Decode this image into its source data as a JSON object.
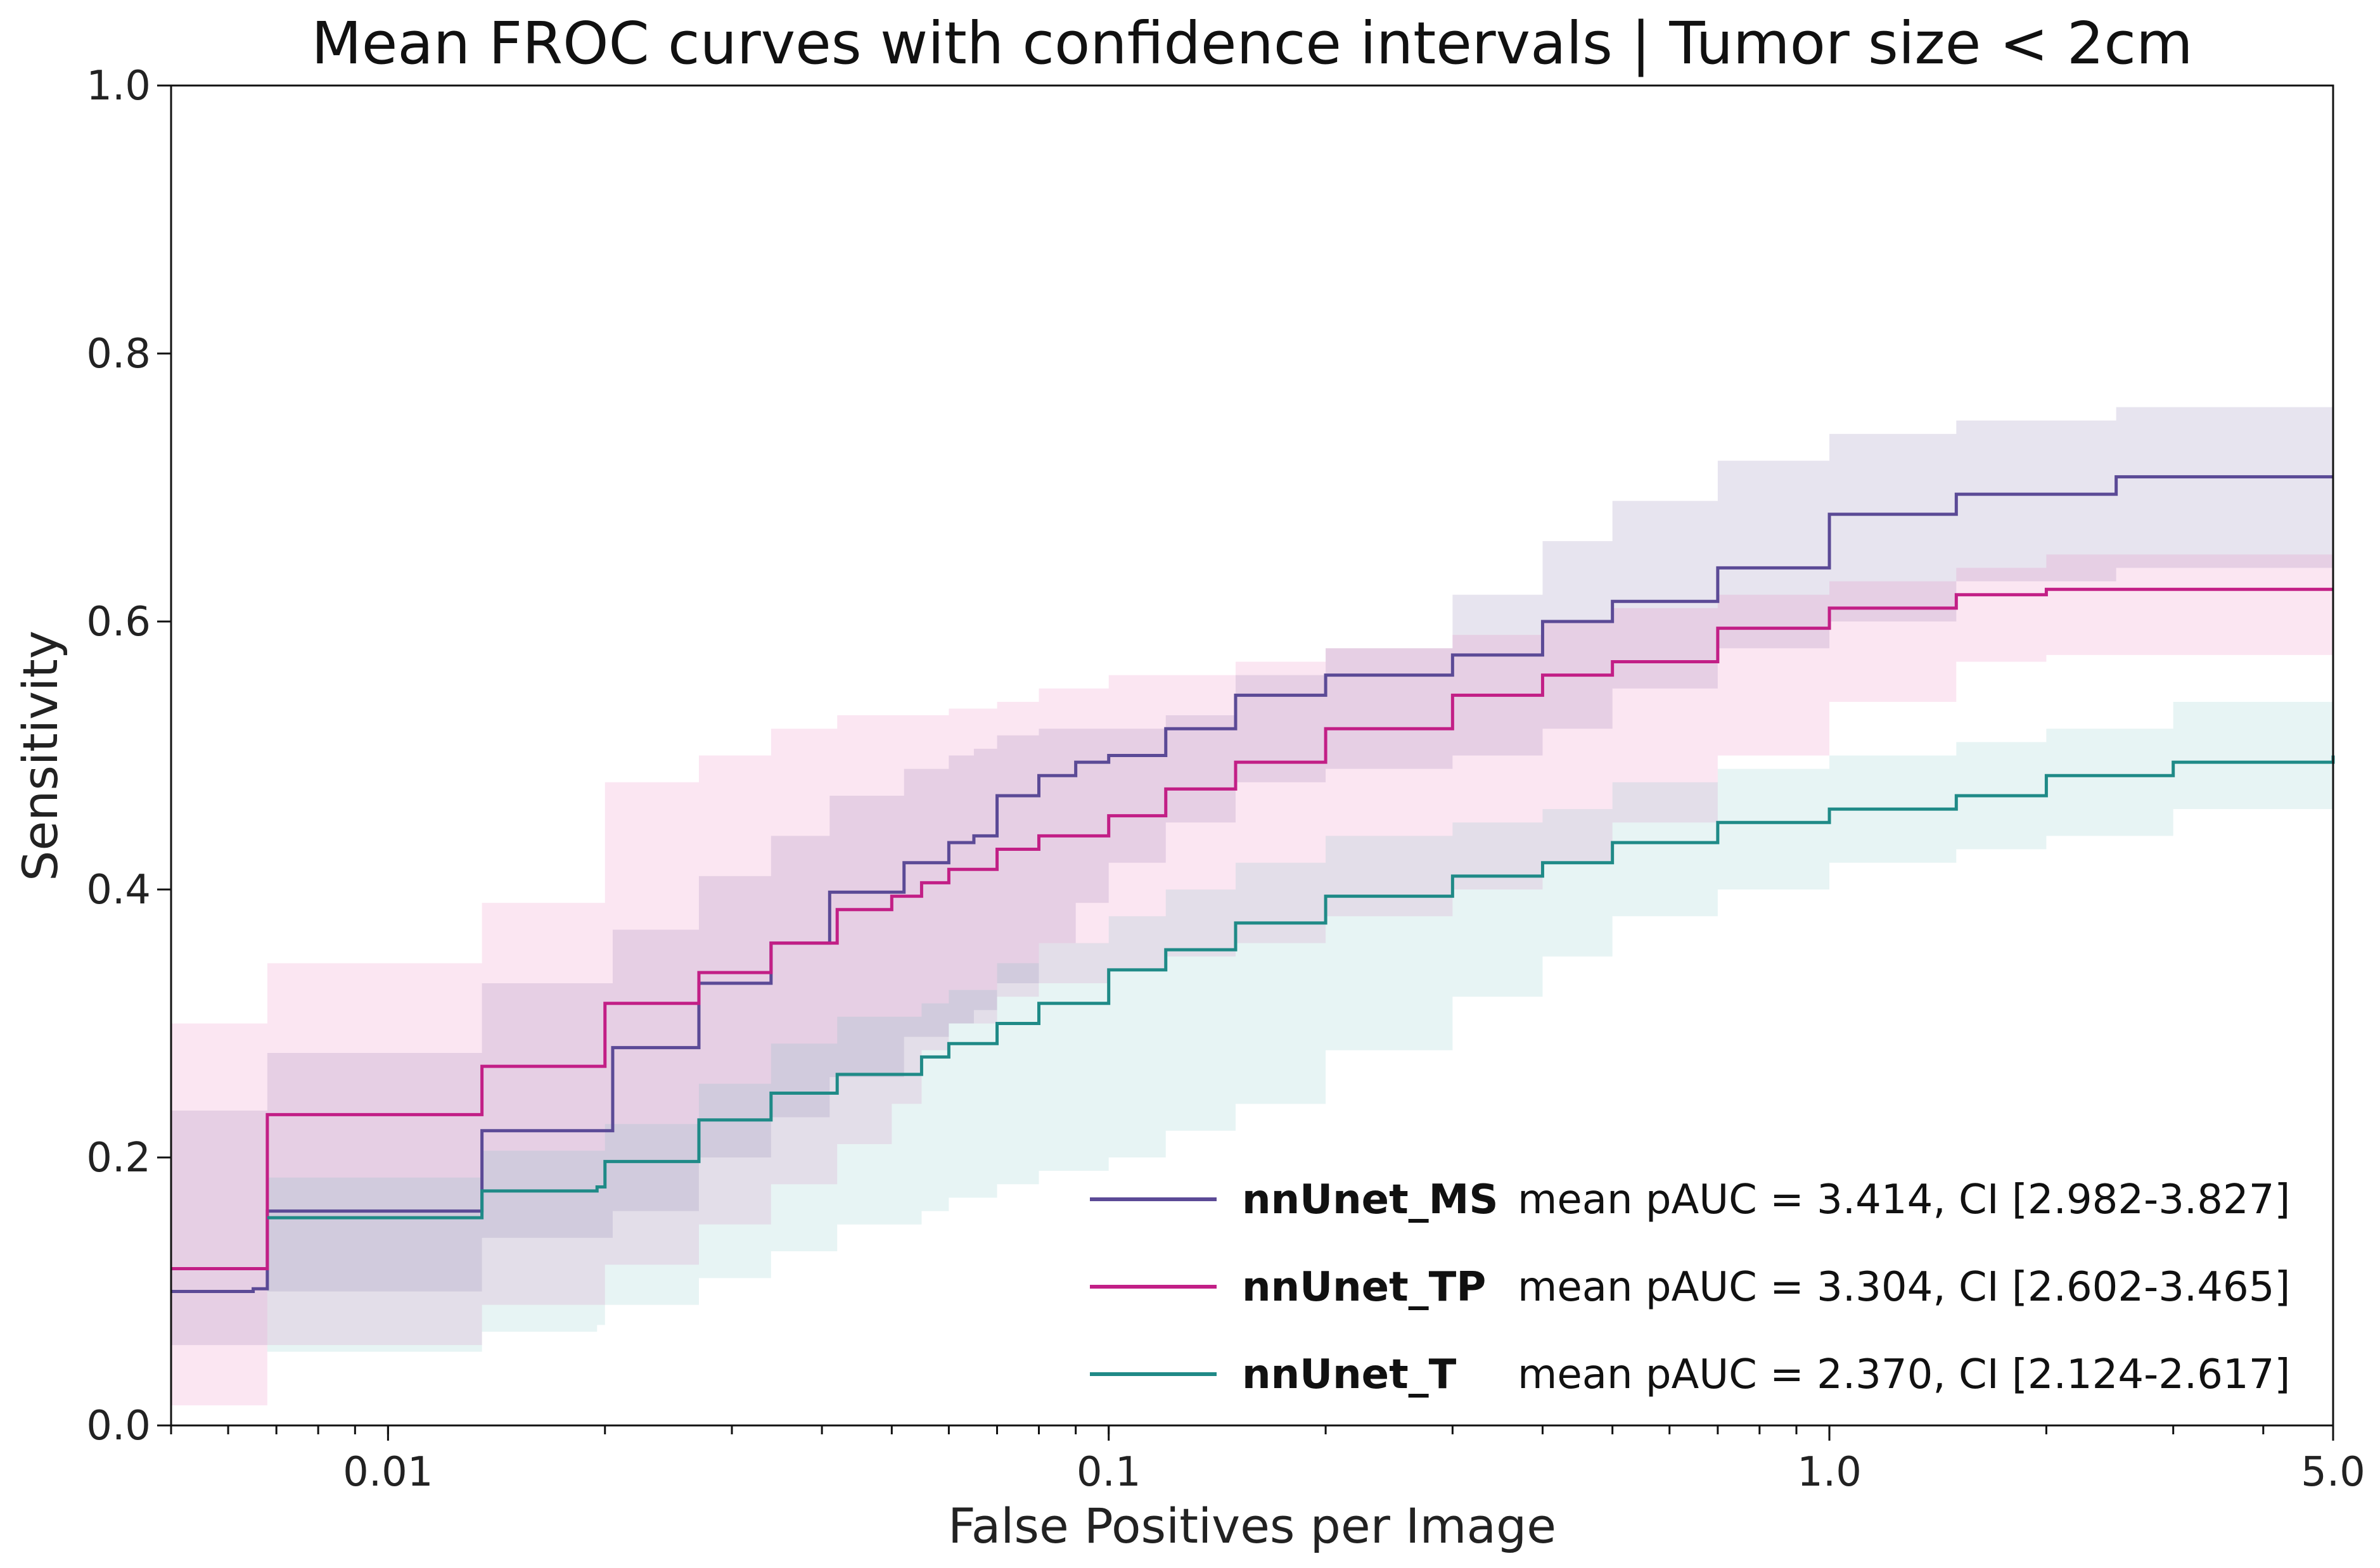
{
  "chart_data": {
    "type": "line",
    "title": "Mean FROC curves with confidence intervals | Tumor size < 2cm",
    "xlabel": "False Positives per Image",
    "ylabel": "Sensitivity",
    "xscale": "log",
    "xlim": [
      0.005,
      5.0
    ],
    "ylim": [
      0.0,
      1.0
    ],
    "x_ticks": [
      {
        "value": 0.01,
        "label": "0.01"
      },
      {
        "value": 0.1,
        "label": "0.1"
      },
      {
        "value": 1.0,
        "label": "1.0"
      },
      {
        "value": 5.0,
        "label": "5.0"
      }
    ],
    "y_ticks": [
      {
        "value": 0.0,
        "label": "0.0"
      },
      {
        "value": 0.2,
        "label": "0.2"
      },
      {
        "value": 0.4,
        "label": "0.4"
      },
      {
        "value": 0.6,
        "label": "0.6"
      },
      {
        "value": 0.8,
        "label": "0.8"
      },
      {
        "value": 1.0,
        "label": "1.0"
      }
    ],
    "legend_position": "bottom-right",
    "series": [
      {
        "name": "nnUnet_MS",
        "legend_text": "mean pAUC = 3.414, CI [2.982-3.827]",
        "color": "#5b4a96",
        "band_color": "#5b4a96",
        "x": [
          0.005,
          0.0065,
          0.0068,
          0.013,
          0.0135,
          0.02,
          0.0205,
          0.026,
          0.027,
          0.033,
          0.034,
          0.04,
          0.041,
          0.05,
          0.052,
          0.06,
          0.065,
          0.07,
          0.08,
          0.09,
          0.1,
          0.12,
          0.15,
          0.2,
          0.3,
          0.4,
          0.5,
          0.7,
          1.0,
          1.5,
          2.5,
          5.0
        ],
        "y": [
          0.1,
          0.102,
          0.16,
          0.16,
          0.22,
          0.22,
          0.282,
          0.282,
          0.33,
          0.33,
          0.36,
          0.36,
          0.398,
          0.398,
          0.42,
          0.435,
          0.44,
          0.47,
          0.485,
          0.495,
          0.5,
          0.52,
          0.545,
          0.56,
          0.575,
          0.6,
          0.615,
          0.64,
          0.68,
          0.695,
          0.708,
          0.708
        ],
        "upper": [
          0.235,
          0.235,
          0.278,
          0.278,
          0.33,
          0.33,
          0.37,
          0.37,
          0.41,
          0.41,
          0.44,
          0.44,
          0.47,
          0.47,
          0.49,
          0.5,
          0.505,
          0.515,
          0.52,
          0.52,
          0.52,
          0.53,
          0.56,
          0.58,
          0.62,
          0.66,
          0.69,
          0.72,
          0.74,
          0.75,
          0.76,
          0.775
        ],
        "lower": [
          0.06,
          0.06,
          0.1,
          0.1,
          0.14,
          0.14,
          0.16,
          0.16,
          0.2,
          0.2,
          0.23,
          0.23,
          0.26,
          0.26,
          0.29,
          0.3,
          0.31,
          0.33,
          0.36,
          0.39,
          0.42,
          0.45,
          0.48,
          0.49,
          0.5,
          0.52,
          0.55,
          0.58,
          0.6,
          0.63,
          0.64,
          0.64
        ]
      },
      {
        "name": "nnUnet_TP",
        "legend_text": "mean pAUC = 3.304, CI [2.602-3.465]",
        "color": "#c21f86",
        "band_color": "#e15aa6",
        "x": [
          0.005,
          0.0065,
          0.0068,
          0.013,
          0.0135,
          0.0195,
          0.02,
          0.026,
          0.027,
          0.033,
          0.034,
          0.04,
          0.042,
          0.05,
          0.055,
          0.06,
          0.07,
          0.08,
          0.1,
          0.12,
          0.15,
          0.2,
          0.3,
          0.4,
          0.5,
          0.7,
          1.0,
          1.5,
          2.0,
          5.0
        ],
        "y": [
          0.117,
          0.117,
          0.232,
          0.232,
          0.268,
          0.268,
          0.315,
          0.315,
          0.338,
          0.338,
          0.36,
          0.36,
          0.385,
          0.395,
          0.405,
          0.415,
          0.43,
          0.44,
          0.455,
          0.475,
          0.495,
          0.52,
          0.545,
          0.56,
          0.57,
          0.595,
          0.61,
          0.62,
          0.624,
          0.624
        ],
        "upper": [
          0.3,
          0.3,
          0.345,
          0.345,
          0.39,
          0.39,
          0.48,
          0.48,
          0.5,
          0.5,
          0.52,
          0.52,
          0.53,
          0.53,
          0.53,
          0.535,
          0.54,
          0.55,
          0.56,
          0.56,
          0.57,
          0.58,
          0.59,
          0.6,
          0.61,
          0.62,
          0.63,
          0.64,
          0.65,
          0.65
        ],
        "lower": [
          0.015,
          0.015,
          0.06,
          0.06,
          0.09,
          0.09,
          0.12,
          0.12,
          0.15,
          0.15,
          0.18,
          0.18,
          0.21,
          0.24,
          0.28,
          0.3,
          0.32,
          0.33,
          0.34,
          0.35,
          0.36,
          0.38,
          0.4,
          0.42,
          0.45,
          0.5,
          0.54,
          0.57,
          0.575,
          0.575
        ]
      },
      {
        "name": "nnUnet_T",
        "legend_text": "mean pAUC = 2.370, CI [2.124-2.617]",
        "color": "#1f8a87",
        "band_color": "#5fb8b2",
        "x": [
          0.0068,
          0.013,
          0.0135,
          0.0195,
          0.02,
          0.026,
          0.027,
          0.033,
          0.034,
          0.04,
          0.042,
          0.05,
          0.055,
          0.06,
          0.07,
          0.08,
          0.1,
          0.12,
          0.15,
          0.2,
          0.3,
          0.4,
          0.5,
          0.7,
          1.0,
          1.5,
          2.0,
          3.0,
          5.0
        ],
        "y": [
          0.155,
          0.155,
          0.175,
          0.178,
          0.197,
          0.197,
          0.228,
          0.228,
          0.248,
          0.248,
          0.262,
          0.262,
          0.275,
          0.285,
          0.3,
          0.315,
          0.34,
          0.355,
          0.375,
          0.395,
          0.41,
          0.42,
          0.435,
          0.45,
          0.46,
          0.47,
          0.485,
          0.495,
          0.5
        ],
        "upper": [
          0.185,
          0.185,
          0.205,
          0.205,
          0.225,
          0.225,
          0.255,
          0.255,
          0.285,
          0.285,
          0.305,
          0.305,
          0.315,
          0.325,
          0.345,
          0.36,
          0.38,
          0.4,
          0.42,
          0.44,
          0.45,
          0.46,
          0.48,
          0.49,
          0.5,
          0.51,
          0.52,
          0.54,
          0.56
        ],
        "lower": [
          0.055,
          0.055,
          0.07,
          0.075,
          0.09,
          0.09,
          0.11,
          0.11,
          0.13,
          0.13,
          0.15,
          0.15,
          0.16,
          0.17,
          0.18,
          0.19,
          0.2,
          0.22,
          0.24,
          0.28,
          0.32,
          0.35,
          0.38,
          0.4,
          0.42,
          0.43,
          0.44,
          0.46,
          0.46
        ]
      }
    ]
  }
}
